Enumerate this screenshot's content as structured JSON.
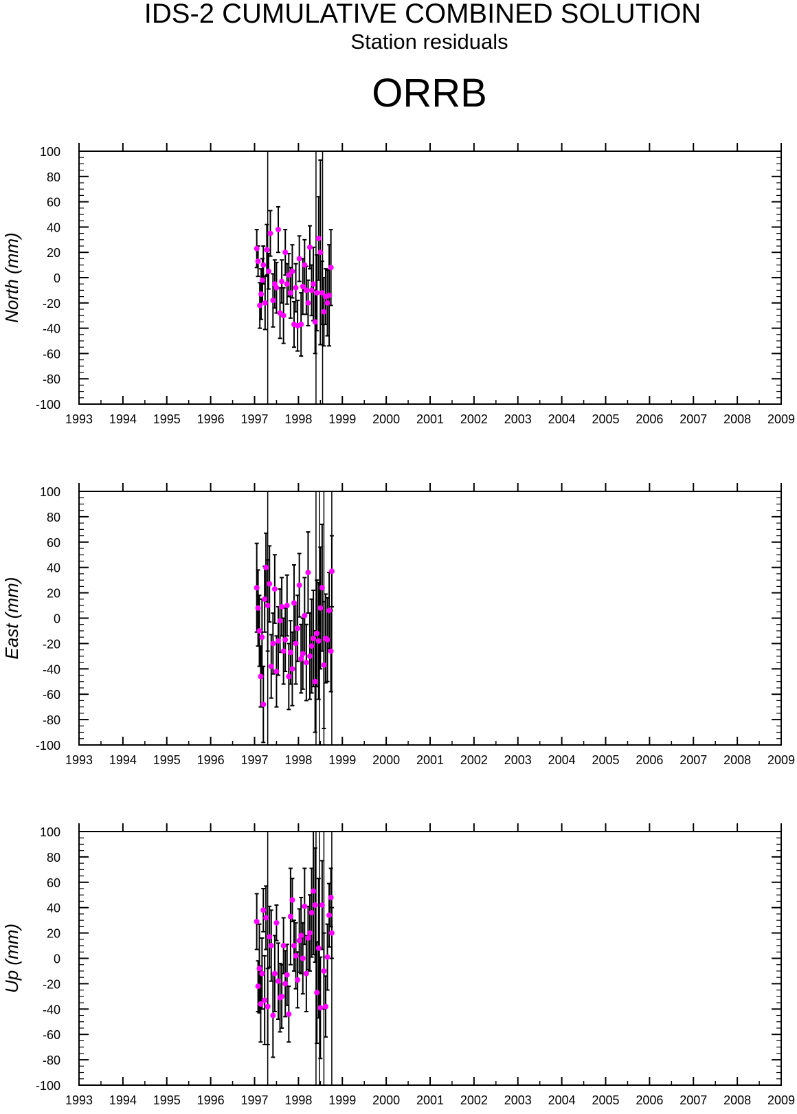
{
  "header": {
    "title": "IDS-2 CUMULATIVE COMBINED SOLUTION",
    "subtitle": "Station residuals",
    "station": "ORRB"
  },
  "colors": {
    "point": "#ff00ff",
    "line": "#000000"
  },
  "chart_data": [
    {
      "type": "scatter",
      "ylabel": "North (mm)",
      "xlim": [
        1993,
        2009
      ],
      "ylim": [
        -100,
        100
      ],
      "xticks": [
        1993,
        1994,
        1995,
        1996,
        1997,
        1998,
        1999,
        2000,
        2001,
        2002,
        2003,
        2004,
        2005,
        2006,
        2007,
        2008,
        2009
      ],
      "yticks": [
        -100,
        -80,
        -60,
        -40,
        -20,
        0,
        20,
        40,
        60,
        80,
        100
      ],
      "grid": false,
      "discontinuities": [
        1997.3,
        1998.4,
        1998.55
      ],
      "x": [
        1997.05,
        1997.08,
        1997.12,
        1997.15,
        1997.18,
        1997.2,
        1997.24,
        1997.28,
        1997.32,
        1997.36,
        1997.42,
        1997.46,
        1997.5,
        1997.54,
        1997.58,
        1997.62,
        1997.66,
        1997.7,
        1997.74,
        1997.78,
        1997.82,
        1997.86,
        1997.9,
        1997.94,
        1997.98,
        1998.02,
        1998.06,
        1998.1,
        1998.14,
        1998.18,
        1998.22,
        1998.26,
        1998.3,
        1998.34,
        1998.38,
        1998.42,
        1998.46,
        1998.5,
        1998.54,
        1998.58,
        1998.62,
        1998.66,
        1998.7,
        1998.74
      ],
      "y": [
        23,
        13,
        -22,
        -13,
        -2,
        10,
        -20,
        22,
        5,
        35,
        -18,
        -5,
        -8,
        38,
        -28,
        -3,
        -30,
        20,
        -5,
        2,
        -12,
        5,
        -37,
        -8,
        -38,
        15,
        -37,
        -7,
        10,
        -10,
        -20,
        24,
        -10,
        -5,
        -35,
        -12,
        31,
        20,
        -12,
        -27,
        -15,
        -20,
        -14,
        8
      ],
      "err": [
        15,
        12,
        18,
        20,
        17,
        15,
        21,
        20,
        14,
        18,
        21,
        19,
        20,
        18,
        20,
        17,
        22,
        18,
        16,
        17,
        20,
        21,
        18,
        19,
        20,
        18,
        25,
        22,
        20,
        19,
        18,
        17,
        20,
        29,
        25,
        30,
        33,
        73,
        25,
        27,
        22,
        26,
        40,
        30
      ]
    },
    {
      "type": "scatter",
      "ylabel": "East (mm)",
      "xlim": [
        1993,
        2009
      ],
      "ylim": [
        -100,
        100
      ],
      "xticks": [
        1993,
        1994,
        1995,
        1996,
        1997,
        1998,
        1999,
        2000,
        2001,
        2002,
        2003,
        2004,
        2005,
        2006,
        2007,
        2008,
        2009
      ],
      "yticks": [
        -100,
        -80,
        -60,
        -40,
        -20,
        0,
        20,
        40,
        60,
        80,
        100
      ],
      "grid": false,
      "discontinuities": [
        1997.3,
        1998.4,
        1998.48,
        1998.58,
        1998.76
      ],
      "x": [
        1997.05,
        1997.08,
        1997.11,
        1997.14,
        1997.17,
        1997.2,
        1997.23,
        1997.26,
        1997.3,
        1997.34,
        1997.38,
        1997.42,
        1997.46,
        1997.5,
        1997.54,
        1997.58,
        1997.62,
        1997.66,
        1997.7,
        1997.74,
        1997.78,
        1997.82,
        1997.86,
        1997.9,
        1997.94,
        1997.98,
        1998.02,
        1998.06,
        1998.1,
        1998.14,
        1998.18,
        1998.22,
        1998.26,
        1998.3,
        1998.34,
        1998.38,
        1998.42,
        1998.46,
        1998.5,
        1998.54,
        1998.58,
        1998.62,
        1998.66,
        1998.7,
        1998.74,
        1998.76
      ],
      "y": [
        24,
        8,
        -10,
        -46,
        -15,
        -68,
        15,
        40,
        10,
        27,
        -38,
        -20,
        23,
        -42,
        -18,
        -2,
        9,
        -26,
        -17,
        10,
        -46,
        -27,
        -40,
        12,
        -20,
        -8,
        26,
        -32,
        -28,
        2,
        -35,
        36,
        -30,
        -22,
        -16,
        -50,
        -12,
        -18,
        8,
        24,
        -37,
        -16,
        -17,
        6,
        -26,
        37
      ],
      "err": [
        35,
        30,
        28,
        24,
        30,
        30,
        26,
        27,
        36,
        30,
        25,
        24,
        27,
        28,
        27,
        25,
        23,
        26,
        25,
        24,
        26,
        25,
        29,
        30,
        32,
        26,
        25,
        27,
        28,
        30,
        30,
        32,
        34,
        37,
        38,
        40,
        42,
        46,
        48,
        50,
        50,
        35,
        33,
        30,
        32,
        28
      ]
    },
    {
      "type": "scatter",
      "ylabel": "Up (mm)",
      "xlim": [
        1993,
        2009
      ],
      "ylim": [
        -100,
        100
      ],
      "xticks": [
        1993,
        1994,
        1995,
        1996,
        1997,
        1998,
        1999,
        2000,
        2001,
        2002,
        2003,
        2004,
        2005,
        2006,
        2007,
        2008,
        2009
      ],
      "yticks": [
        -100,
        -80,
        -60,
        -40,
        -20,
        0,
        20,
        40,
        60,
        80,
        100
      ],
      "grid": false,
      "discontinuities": [
        1997.3,
        1998.4,
        1998.48,
        1998.58,
        1998.76
      ],
      "x": [
        1997.05,
        1997.08,
        1997.11,
        1997.14,
        1997.17,
        1997.2,
        1997.23,
        1997.26,
        1997.3,
        1997.34,
        1997.38,
        1997.42,
        1997.46,
        1997.5,
        1997.54,
        1997.58,
        1997.62,
        1997.66,
        1997.7,
        1997.74,
        1997.78,
        1997.82,
        1997.86,
        1997.9,
        1997.94,
        1997.98,
        1998.02,
        1998.06,
        1998.1,
        1998.14,
        1998.18,
        1998.22,
        1998.26,
        1998.3,
        1998.34,
        1998.38,
        1998.42,
        1998.46,
        1998.5,
        1998.54,
        1998.58,
        1998.62,
        1998.66,
        1998.7,
        1998.74,
        1998.76
      ],
      "y": [
        29,
        -22,
        -8,
        -36,
        -12,
        38,
        -33,
        32,
        -38,
        17,
        10,
        -45,
        -12,
        28,
        -18,
        -31,
        -30,
        10,
        -20,
        -13,
        -44,
        33,
        46,
        10,
        2,
        -17,
        14,
        18,
        0,
        41,
        -12,
        16,
        20,
        36,
        53,
        42,
        -27,
        8,
        -39,
        42,
        -10,
        -38,
        1,
        34,
        48,
        20
      ],
      "err": [
        22,
        20,
        35,
        30,
        28,
        17,
        35,
        25,
        30,
        24,
        28,
        33,
        30,
        14,
        30,
        27,
        25,
        22,
        26,
        24,
        22,
        38,
        17,
        20,
        26,
        22,
        25,
        30,
        28,
        30,
        30,
        25,
        30,
        35,
        50,
        45,
        40,
        55,
        40,
        35,
        30,
        24,
        26,
        25,
        23,
        20
      ]
    }
  ]
}
